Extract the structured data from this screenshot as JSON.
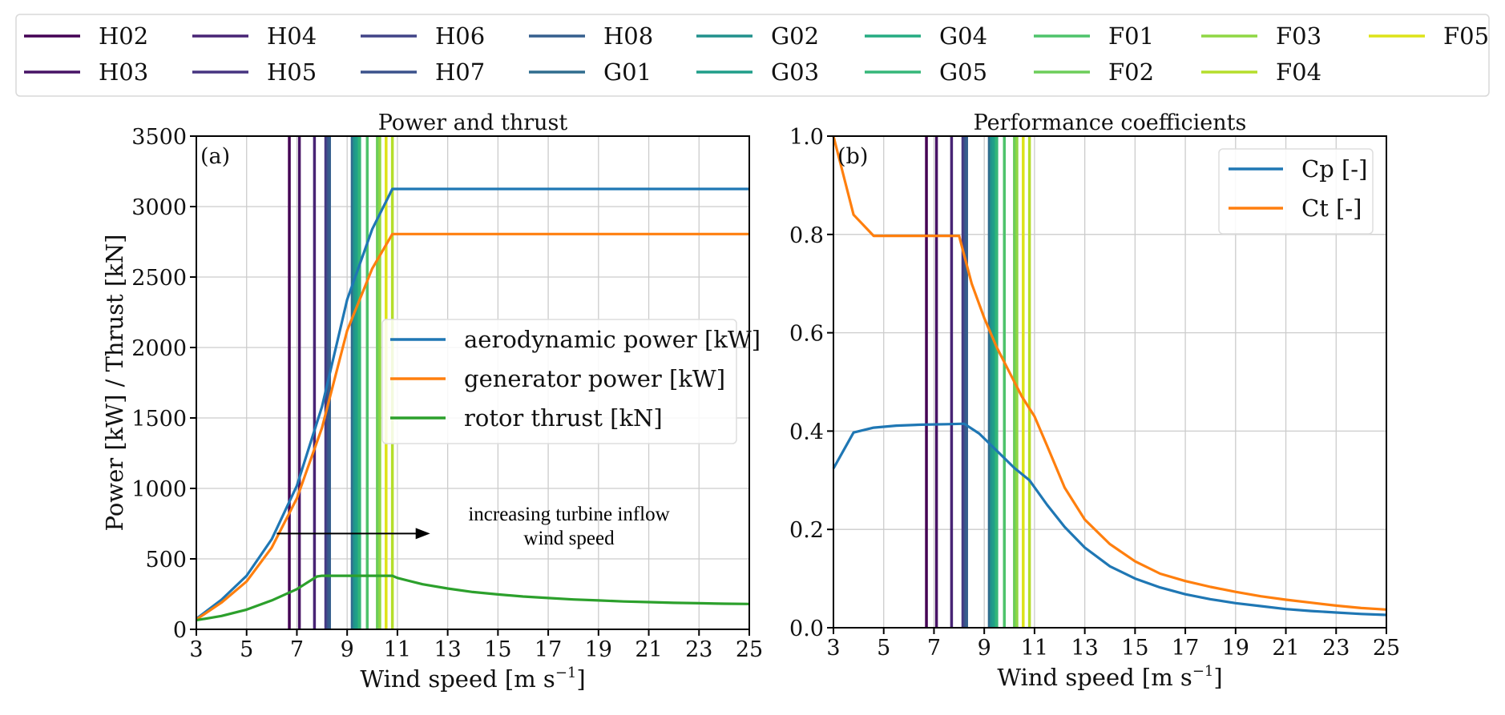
{
  "turbine_legend": {
    "entries": [
      {
        "label": "H02",
        "color": "#440154"
      },
      {
        "label": "H03",
        "color": "#471365"
      },
      {
        "label": "H04",
        "color": "#482475"
      },
      {
        "label": "H05",
        "color": "#463480"
      },
      {
        "label": "H06",
        "color": "#414487"
      },
      {
        "label": "H07",
        "color": "#3b528b"
      },
      {
        "label": "H08",
        "color": "#355f8d"
      },
      {
        "label": "G01",
        "color": "#2f6c8e"
      },
      {
        "label": "G02",
        "color": "#21918c"
      },
      {
        "label": "G03",
        "color": "#1f9e89"
      },
      {
        "label": "G04",
        "color": "#25ab82"
      },
      {
        "label": "G05",
        "color": "#35b779"
      },
      {
        "label": "F01",
        "color": "#4ec36b"
      },
      {
        "label": "F02",
        "color": "#6ccd5a"
      },
      {
        "label": "F03",
        "color": "#8fd744"
      },
      {
        "label": "F04",
        "color": "#b5de2b"
      },
      {
        "label": "F05",
        "color": "#dde318"
      }
    ]
  },
  "chart_data": [
    {
      "type": "line",
      "panel_tag": "(a)",
      "title": "Power and thrust",
      "xlabel": "Wind speed [m s",
      "xlabel_sup": "−1",
      "xlabel_end": "]",
      "ylabel": "Power [kW] / Thrust [kN]",
      "xlim": [
        3,
        25
      ],
      "ylim": [
        0,
        3500
      ],
      "xticks": [
        3,
        5,
        7,
        9,
        11,
        13,
        15,
        17,
        19,
        21,
        23,
        25
      ],
      "yticks": [
        0,
        500,
        1000,
        1500,
        2000,
        2500,
        3000,
        3500
      ],
      "grid": true,
      "legend_position": "center-right",
      "series": [
        {
          "name": "aerodynamic power [kW]",
          "color": "#1f77b4",
          "x": [
            3,
            4,
            5,
            6,
            7,
            8,
            9,
            10,
            10.8,
            11,
            13,
            15,
            17,
            19,
            21,
            23,
            25
          ],
          "y": [
            75,
            210,
            380,
            640,
            1020,
            1580,
            2340,
            2840,
            3125,
            3125,
            3125,
            3125,
            3125,
            3125,
            3125,
            3125,
            3125
          ]
        },
        {
          "name": "generator power [kW]",
          "color": "#ff7f0e",
          "x": [
            3,
            4,
            5,
            6,
            7,
            8,
            9,
            10,
            10.8,
            11,
            13,
            15,
            17,
            19,
            21,
            23,
            25
          ],
          "y": [
            70,
            190,
            340,
            580,
            930,
            1430,
            2120,
            2560,
            2805,
            2805,
            2805,
            2805,
            2805,
            2805,
            2805,
            2805,
            2805
          ]
        },
        {
          "name": "rotor thrust [kN]",
          "color": "#2ca02c",
          "x": [
            3,
            4,
            5,
            6,
            7,
            7.8,
            8,
            9,
            10,
            10.8,
            11,
            12,
            13,
            14,
            15,
            16,
            17,
            18,
            19,
            20,
            21,
            22,
            23,
            24,
            25
          ],
          "y": [
            65,
            95,
            140,
            205,
            285,
            375,
            380,
            380,
            380,
            380,
            365,
            320,
            290,
            265,
            248,
            233,
            222,
            212,
            205,
            198,
            193,
            188,
            185,
            182,
            180
          ]
        }
      ],
      "annotation": {
        "text_line1": "increasing turbine inflow",
        "text_line2": "wind speed",
        "arrow_from_x": 6.2,
        "arrow_to_x": 12.3,
        "arrow_y": 680
      }
    },
    {
      "type": "line",
      "panel_tag": "(b)",
      "title": "Performance coefficients",
      "xlabel": "Wind speed [m s",
      "xlabel_sup": "−1",
      "xlabel_end": "]",
      "ylabel": "",
      "xlim": [
        3,
        25
      ],
      "ylim": [
        0.0,
        1.0
      ],
      "xticks": [
        3,
        5,
        7,
        9,
        11,
        13,
        15,
        17,
        19,
        21,
        23,
        25
      ],
      "yticks": [
        0.0,
        0.2,
        0.4,
        0.6,
        0.8,
        1.0
      ],
      "ytick_labels": [
        "0.0",
        "0.2",
        "0.4",
        "0.6",
        "0.8",
        "1.0"
      ],
      "grid": true,
      "legend_position": "upper-right",
      "series": [
        {
          "name": "Cp [-]",
          "color": "#1f77b4",
          "x": [
            3,
            3.8,
            4.6,
            5.5,
            6.5,
            7.5,
            8.2,
            8.8,
            9.5,
            10.2,
            10.8,
            11.5,
            12.2,
            13,
            14,
            15,
            16,
            17,
            18,
            19,
            20,
            21,
            22,
            23,
            24,
            25
          ],
          "y": [
            0.324,
            0.397,
            0.407,
            0.411,
            0.413,
            0.414,
            0.415,
            0.395,
            0.36,
            0.325,
            0.3,
            0.25,
            0.205,
            0.163,
            0.125,
            0.1,
            0.082,
            0.068,
            0.058,
            0.05,
            0.044,
            0.038,
            0.034,
            0.031,
            0.028,
            0.026
          ]
        },
        {
          "name": "Ct [-]",
          "color": "#ff7f0e",
          "x": [
            3,
            3.8,
            4.6,
            5.5,
            6.5,
            7.5,
            8.0,
            8.5,
            9.0,
            9.5,
            10.0,
            10.5,
            11.0,
            11.5,
            12.2,
            13,
            14,
            15,
            16,
            17,
            18,
            19,
            20,
            21,
            22,
            23,
            24,
            25
          ],
          "y": [
            1.0,
            0.84,
            0.797,
            0.797,
            0.797,
            0.797,
            0.797,
            0.7,
            0.63,
            0.57,
            0.52,
            0.47,
            0.43,
            0.37,
            0.285,
            0.22,
            0.17,
            0.135,
            0.11,
            0.095,
            0.083,
            0.073,
            0.064,
            0.057,
            0.051,
            0.045,
            0.04,
            0.037
          ]
        }
      ]
    }
  ],
  "turbine_wind_speeds": {
    "H02": 6.7,
    "H03": 7.1,
    "H04": 7.7,
    "H05": 8.15,
    "H06": 8.2,
    "H07": 8.25,
    "H08": 8.3,
    "G01": 9.2,
    "G02": 9.28,
    "G03": 9.35,
    "G04": 9.45,
    "G05": 9.5,
    "F01": 9.8,
    "F02": 10.2,
    "F03": 10.3,
    "F04": 10.8,
    "F05": 10.55
  }
}
